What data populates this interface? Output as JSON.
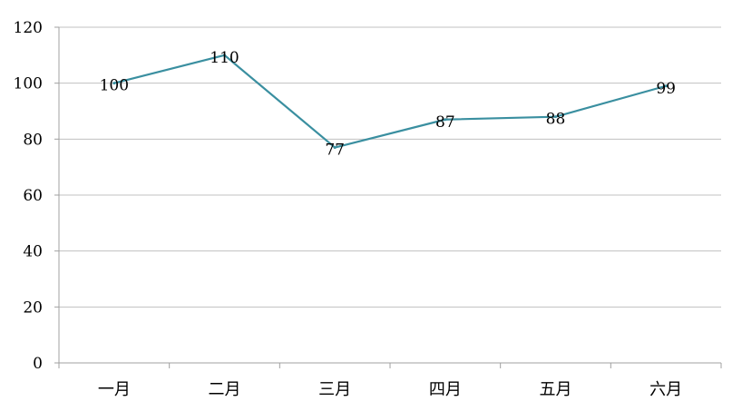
{
  "chart_data": {
    "type": "line",
    "title": "",
    "xlabel": "",
    "ylabel": "",
    "categories": [
      "一月",
      "二月",
      "三月",
      "四月",
      "五月",
      "六月"
    ],
    "series": [
      {
        "values": [
          100,
          110,
          77,
          87,
          88,
          99
        ]
      }
    ],
    "ylim": [
      0,
      120
    ],
    "y_ticks": [
      0,
      20,
      40,
      60,
      80,
      100,
      120
    ],
    "y_tick_labels": [
      "0",
      "20",
      "40",
      "60",
      "80",
      "100",
      "120"
    ],
    "data_labels": [
      "100",
      "110",
      "77",
      "87",
      "88",
      "99"
    ],
    "grid": true,
    "legend": "none",
    "colors": {
      "line": "#3a8fa0",
      "grid": "#c0c0c0",
      "axis": "#a0a0a0"
    }
  }
}
